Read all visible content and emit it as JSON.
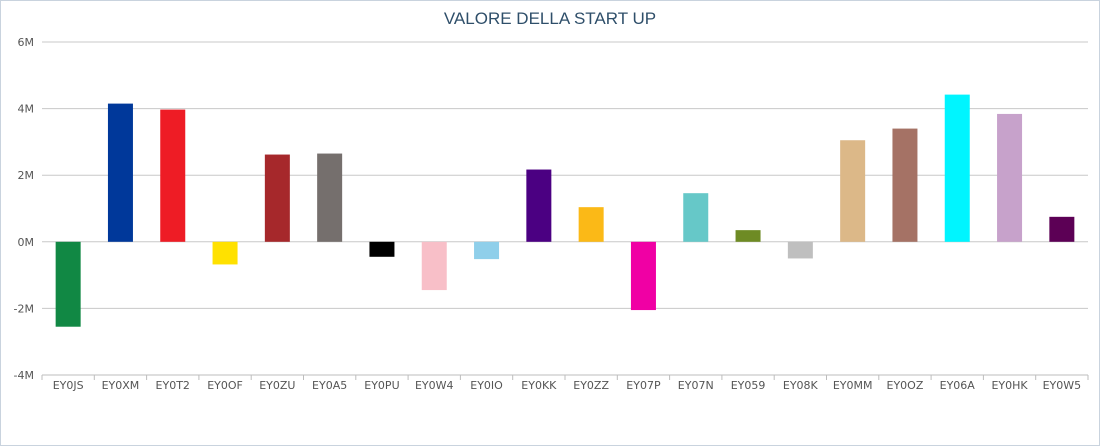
{
  "chart_data": {
    "type": "bar",
    "title": "VALORE DELLA START UP",
    "categories": [
      "EY0JS",
      "EY0XM",
      "EY0T2",
      "EY0OF",
      "EY0ZU",
      "EY0A5",
      "EY0PU",
      "EY0W4",
      "EY0IO",
      "EY0KK",
      "EY0ZZ",
      "EY07P",
      "EY07N",
      "EY059",
      "EY08K",
      "EY0MM",
      "EY0OZ",
      "EY06A",
      "EY0HK",
      "EY0W5"
    ],
    "values": [
      -2.55,
      4.15,
      3.97,
      -0.68,
      2.62,
      2.65,
      -0.45,
      -1.45,
      -0.52,
      2.17,
      1.04,
      -2.05,
      1.46,
      0.35,
      -0.5,
      3.05,
      3.4,
      4.42,
      3.84,
      0.75
    ],
    "colors": [
      "#118844",
      "#00389a",
      "#ee1c25",
      "#ffe100",
      "#a6282b",
      "#756f6d",
      "#000000",
      "#f8bfc8",
      "#8fcfea",
      "#4b0082",
      "#fbb917",
      "#f000a4",
      "#66c8c8",
      "#6e8b24",
      "#bfbfbf",
      "#dcb888",
      "#a57265",
      "#00f5ff",
      "#c7a2cb",
      "#5c0055"
    ],
    "yticks": [
      "6M",
      "4M",
      "2M",
      "0M",
      "-2M",
      "-4M"
    ],
    "ylim": [
      -4,
      6
    ],
    "grid": true
  }
}
